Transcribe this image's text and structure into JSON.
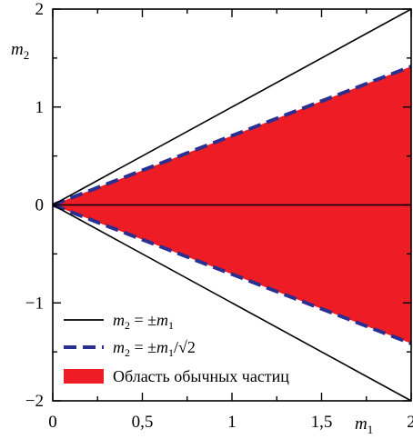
{
  "chart_data": {
    "type": "area",
    "xlabel": "m",
    "xlabel_sub": "1",
    "ylabel": "m",
    "ylabel_sub": "2",
    "xlim": [
      0,
      2
    ],
    "ylim": [
      -2,
      2
    ],
    "x_ticks": [
      {
        "value": 0,
        "label": "0"
      },
      {
        "value": 0.5,
        "label": "0,5"
      },
      {
        "value": 1,
        "label": "1"
      },
      {
        "value": 1.5,
        "label": "1,5"
      },
      {
        "value": 2,
        "label": "2"
      }
    ],
    "y_ticks": [
      {
        "value": -2,
        "label": "−2"
      },
      {
        "value": -1,
        "label": "−1"
      },
      {
        "value": 0,
        "label": "0"
      },
      {
        "value": 1,
        "label": "1"
      },
      {
        "value": 2,
        "label": "2"
      }
    ],
    "series": [
      {
        "name": "m₂ = ±m₁",
        "style": "solid",
        "color": "#000000",
        "lines": [
          {
            "x": [
              0,
              2
            ],
            "y": [
              0,
              2
            ]
          },
          {
            "x": [
              0,
              2
            ],
            "y": [
              0,
              -2
            ]
          }
        ]
      },
      {
        "name": "m₂ = ±m₁/√2",
        "style": "dashed",
        "color": "#2b2f8f",
        "lines": [
          {
            "x": [
              0,
              2
            ],
            "y": [
              0,
              1.414
            ]
          },
          {
            "x": [
              0,
              2
            ],
            "y": [
              0,
              -1.414
            ]
          }
        ]
      },
      {
        "name": "Область обычных частиц",
        "style": "fill",
        "color": "#ee1c24",
        "polygon": {
          "x": [
            0,
            2,
            2
          ],
          "y": [
            0,
            1.414,
            -1.414
          ]
        }
      }
    ],
    "hline": {
      "y": 0,
      "color": "#000000"
    },
    "legend": {
      "placement": "bottom-left",
      "entries": [
        {
          "lhs": "m",
          "lhs_sub": "2",
          "rel": " = ±",
          "rhs": "m",
          "rhs_sub": "1",
          "tail": ""
        },
        {
          "lhs": "m",
          "lhs_sub": "2",
          "rel": " = ±",
          "rhs": "m",
          "rhs_sub": "1",
          "tail": "/√2"
        },
        {
          "text": "Область обычных частиц"
        }
      ]
    }
  }
}
